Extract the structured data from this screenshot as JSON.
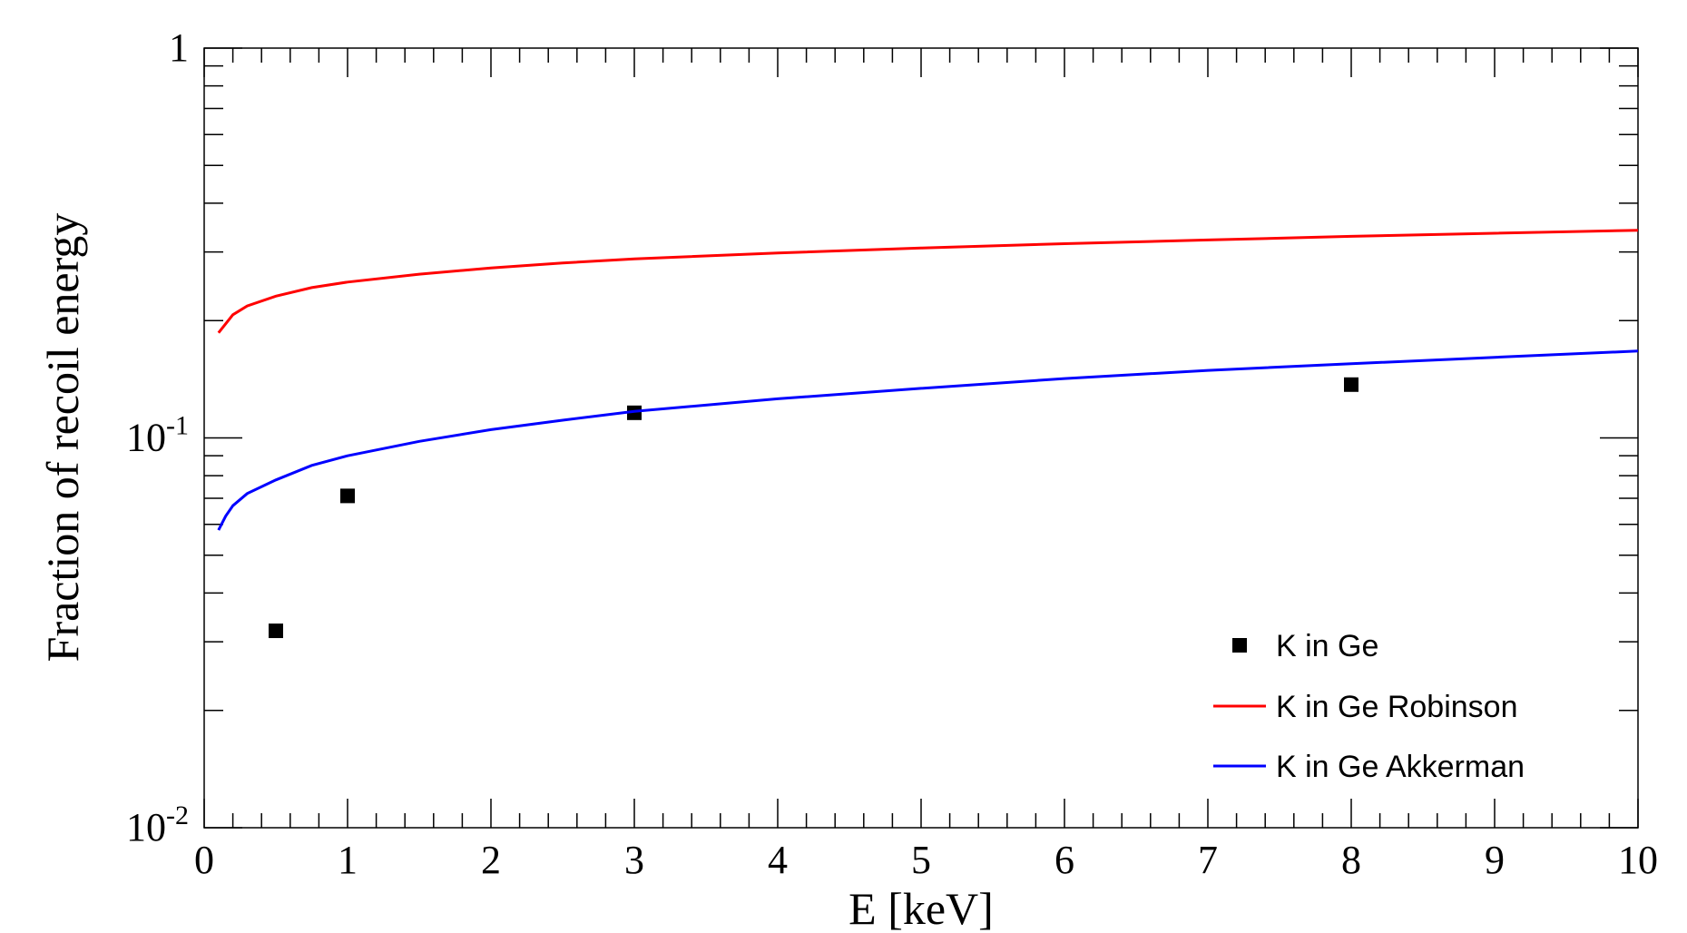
{
  "chart_data": {
    "type": "line",
    "title": "",
    "xlabel": "E [keV]",
    "ylabel": "Fraction of recoil energy",
    "xlim": [
      0,
      10
    ],
    "ylim": [
      0.01,
      1
    ],
    "y_scale": "log",
    "grid": false,
    "legend_placement": "bottom-right",
    "x_ticks": [
      {
        "value": 0,
        "label": "0"
      },
      {
        "value": 1,
        "label": "1"
      },
      {
        "value": 2,
        "label": "2"
      },
      {
        "value": 3,
        "label": "3"
      },
      {
        "value": 4,
        "label": "4"
      },
      {
        "value": 5,
        "label": "5"
      },
      {
        "value": 6,
        "label": "6"
      },
      {
        "value": 7,
        "label": "7"
      },
      {
        "value": 8,
        "label": "8"
      },
      {
        "value": 9,
        "label": "9"
      },
      {
        "value": 10,
        "label": "10"
      }
    ],
    "y_ticks": [
      {
        "value": 0.01,
        "base": "10",
        "exp": "-2"
      },
      {
        "value": 0.1,
        "base": "10",
        "exp": "-1"
      },
      {
        "value": 1,
        "base": "1",
        "exp": ""
      }
    ],
    "series": [
      {
        "name": "K in Ge",
        "kind": "markers",
        "color": "#000000",
        "points": [
          [
            0.5,
            0.032
          ],
          [
            1.0,
            0.071
          ],
          [
            3.0,
            0.116
          ],
          [
            8.0,
            0.137
          ]
        ]
      },
      {
        "name": "K in Ge Robinson",
        "kind": "line",
        "color": "#ff0000",
        "points": [
          [
            0.1,
            0.186
          ],
          [
            0.2,
            0.207
          ],
          [
            0.3,
            0.218
          ],
          [
            0.5,
            0.231
          ],
          [
            0.75,
            0.243
          ],
          [
            1.0,
            0.251
          ],
          [
            1.5,
            0.263
          ],
          [
            2.0,
            0.273
          ],
          [
            2.5,
            0.281
          ],
          [
            3.0,
            0.288
          ],
          [
            4.0,
            0.298
          ],
          [
            5.0,
            0.307
          ],
          [
            6.0,
            0.315
          ],
          [
            7.0,
            0.322
          ],
          [
            8.0,
            0.329
          ],
          [
            9.0,
            0.335
          ],
          [
            10.0,
            0.341
          ]
        ]
      },
      {
        "name": "K in Ge Akkerman",
        "kind": "line",
        "color": "#0000ff",
        "points": [
          [
            0.1,
            0.058
          ],
          [
            0.15,
            0.063
          ],
          [
            0.2,
            0.067
          ],
          [
            0.3,
            0.072
          ],
          [
            0.5,
            0.078
          ],
          [
            0.75,
            0.085
          ],
          [
            1.0,
            0.09
          ],
          [
            1.5,
            0.098
          ],
          [
            2.0,
            0.105
          ],
          [
            2.5,
            0.111
          ],
          [
            3.0,
            0.117
          ],
          [
            4.0,
            0.126
          ],
          [
            5.0,
            0.134
          ],
          [
            6.0,
            0.142
          ],
          [
            7.0,
            0.149
          ],
          [
            8.0,
            0.155
          ],
          [
            9.0,
            0.161
          ],
          [
            10.0,
            0.167
          ]
        ]
      }
    ]
  }
}
